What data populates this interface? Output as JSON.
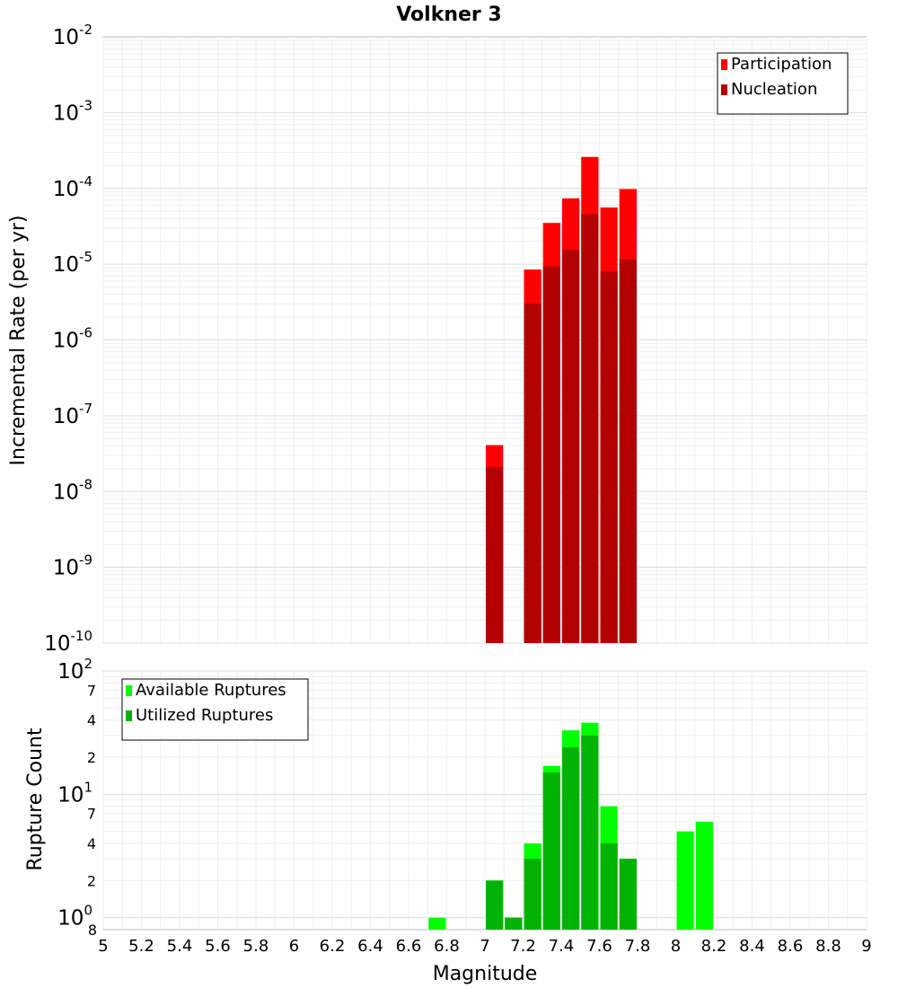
{
  "chart_data": [
    {
      "type": "bar",
      "title": "Volkner 3",
      "xlabel": "Magnitude",
      "ylabel": "Incremental Rate (per yr)",
      "yscale": "log",
      "xlim": [
        5,
        9
      ],
      "ylim": [
        1e-10,
        0.01
      ],
      "y_major_ticks": [
        {
          "base": "10",
          "exp": "-10",
          "value": 1e-10
        },
        {
          "base": "10",
          "exp": "-9",
          "value": 1e-09
        },
        {
          "base": "10",
          "exp": "-8",
          "value": 1e-08
        },
        {
          "base": "10",
          "exp": "-7",
          "value": 1e-07
        },
        {
          "base": "10",
          "exp": "-6",
          "value": 1e-06
        },
        {
          "base": "10",
          "exp": "-5",
          "value": 1e-05
        },
        {
          "base": "10",
          "exp": "-4",
          "value": 0.0001
        },
        {
          "base": "10",
          "exp": "-3",
          "value": 0.001
        },
        {
          "base": "10",
          "exp": "-2",
          "value": 0.01
        }
      ],
      "grid": true,
      "legend_position": "top-right",
      "categories": [
        "7.05",
        "7.25",
        "7.35",
        "7.45",
        "7.55",
        "7.65",
        "7.75"
      ],
      "series": [
        {
          "name": "Participation",
          "color": "#ff0000",
          "values": [
            4.1e-08,
            8.5e-06,
            3.5e-05,
            7.4e-05,
            0.00026,
            5.6e-05,
            9.8e-05
          ]
        },
        {
          "name": "Nucleation",
          "color": "#b30000",
          "values": [
            2.1e-08,
            3e-06,
            9.3e-06,
            1.55e-05,
            4.6e-05,
            8e-06,
            1.15e-05
          ]
        }
      ]
    },
    {
      "type": "bar",
      "xlabel": "Magnitude",
      "ylabel": "Rupture Count",
      "yscale": "log",
      "xlim": [
        5,
        9
      ],
      "ylim": [
        0.8,
        100
      ],
      "x_ticks": [
        "5",
        "5.2",
        "5.4",
        "5.6",
        "5.8",
        "6",
        "6.2",
        "6.4",
        "6.6",
        "6.8",
        "7",
        "7.2",
        "7.4",
        "7.6",
        "7.8",
        "8",
        "8.2",
        "8.4",
        "8.6",
        "8.8",
        "9"
      ],
      "y_major_ticks": [
        {
          "base": "10",
          "exp": "0",
          "value": 1
        },
        {
          "base": "10",
          "exp": "1",
          "value": 10
        },
        {
          "base": "10",
          "exp": "2",
          "value": 100
        }
      ],
      "y_minor_ticks": [
        {
          "label": "8",
          "value": 0.8
        },
        {
          "label": "2",
          "value": 2
        },
        {
          "label": "4",
          "value": 4
        },
        {
          "label": "7",
          "value": 7
        },
        {
          "label": "2",
          "value": 20
        },
        {
          "label": "4",
          "value": 40
        },
        {
          "label": "7",
          "value": 70
        }
      ],
      "grid": true,
      "legend_position": "top-left",
      "series": [
        {
          "name": "Available Ruptures",
          "color": "#00ff00",
          "x": [
            6.75,
            7.05,
            7.15,
            7.25,
            7.35,
            7.45,
            7.55,
            7.65,
            7.75,
            8.05,
            8.15
          ],
          "values": [
            1,
            2,
            1,
            4,
            17,
            33,
            38,
            8,
            3,
            5,
            6
          ]
        },
        {
          "name": "Utilized Ruptures",
          "color": "#00b300",
          "x": [
            7.05,
            7.15,
            7.25,
            7.35,
            7.45,
            7.55,
            7.65,
            7.75
          ],
          "values": [
            2,
            1,
            3,
            15,
            24,
            30,
            4,
            3
          ]
        }
      ]
    }
  ]
}
